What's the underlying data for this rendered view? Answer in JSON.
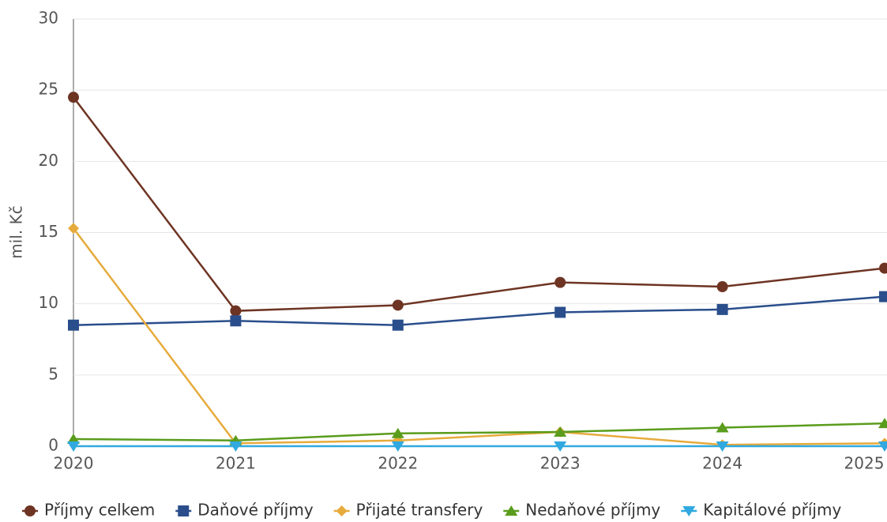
{
  "chart_data": {
    "type": "line",
    "y_label": "mil. Kč",
    "categories": [
      "2020",
      "2021",
      "2022",
      "2023",
      "2024",
      "2025"
    ],
    "ylim": [
      0,
      30
    ],
    "yticks": [
      0,
      5,
      10,
      15,
      20,
      25,
      30
    ],
    "grid": true,
    "series": [
      {
        "name": "Příjmy celkem",
        "color": "#6e3423",
        "marker": "circle",
        "values": [
          24.5,
          9.5,
          9.9,
          11.5,
          11.2,
          12.5
        ]
      },
      {
        "name": "Daňové příjmy",
        "color": "#2a4e8c",
        "marker": "square",
        "values": [
          8.5,
          8.8,
          8.5,
          9.4,
          9.6,
          10.5
        ]
      },
      {
        "name": "Přijaté transfery",
        "color": "#e6ab3c",
        "marker": "diamond",
        "values": [
          15.3,
          0.2,
          0.4,
          1.0,
          0.1,
          0.2
        ]
      },
      {
        "name": "Nedaňové příjmy",
        "color": "#5a9c1c",
        "marker": "triangle",
        "values": [
          0.5,
          0.4,
          0.9,
          1.0,
          1.3,
          1.6
        ]
      },
      {
        "name": "Kapitálové příjmy",
        "color": "#31a9e0",
        "marker": "triangle-down",
        "values": [
          0,
          0,
          0,
          0,
          0,
          0
        ]
      }
    ],
    "legend": "bottom"
  }
}
